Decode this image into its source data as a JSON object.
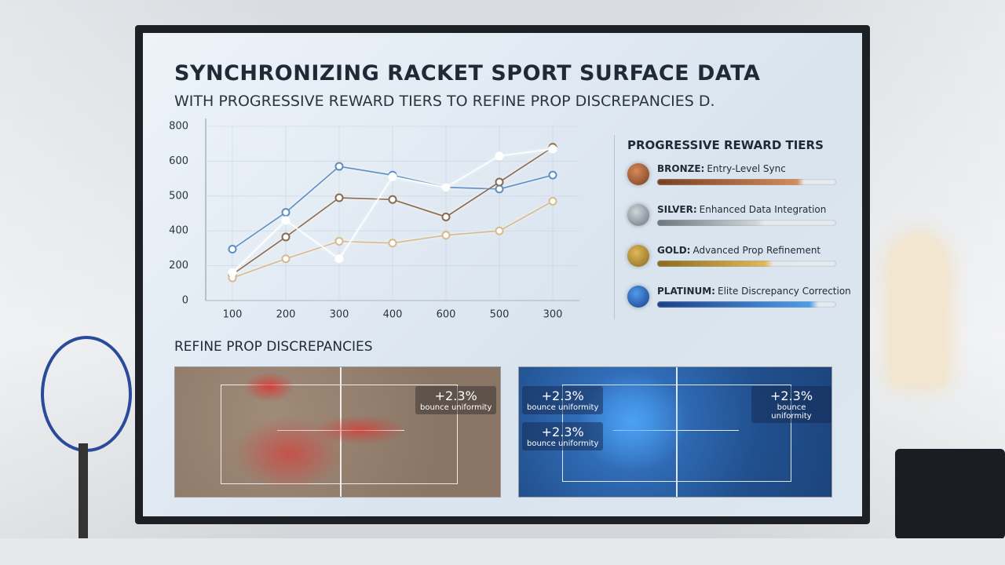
{
  "header": {
    "title": "SYNCHRONIZING RACKET SPORT SURFACE DATA",
    "subtitle": "WITH PROGRESSIVE REWARD TIERS TO REFINE PROP DISCREPANCIES D."
  },
  "chart_data": {
    "type": "line",
    "categories": [
      "100",
      "200",
      "300",
      "400",
      "600",
      "500",
      "300"
    ],
    "ylim": [
      0,
      800
    ],
    "yticks": [
      0,
      200,
      400,
      500,
      600,
      800
    ],
    "grid": true,
    "series": [
      {
        "color": "#5b8ec4",
        "values": [
          295,
          453,
          585,
          560,
          525,
          520,
          560
        ]
      },
      {
        "color": "#8a6a4a",
        "values": [
          150,
          365,
          495,
          490,
          440,
          540,
          680
        ]
      },
      {
        "color": "#d9b98a",
        "values": [
          130,
          240,
          340,
          330,
          375,
          400,
          485
        ]
      },
      {
        "color": "#ffffff",
        "values": [
          160,
          430,
          240,
          555,
          525,
          630,
          670
        ]
      }
    ]
  },
  "tiers": {
    "title": "PROGRESSIVE REWARD TIERS",
    "items": [
      {
        "name": "BRONZE:",
        "desc": "Entry-Level Sync"
      },
      {
        "name": "SILVER:",
        "desc": "Enhanced Data Integration"
      },
      {
        "name": "GOLD:",
        "desc": "Advanced Prop Refinement"
      },
      {
        "name": "PLATINUM:",
        "desc": "Elite Discrepancy Correction"
      }
    ]
  },
  "discrepancies": {
    "title": "REFINE PROP DISCREPANCIES",
    "labels": [
      {
        "value": "+2.3%",
        "text": "bounce uniformity"
      },
      {
        "value": "+2.3%",
        "text": "bounce uniformity"
      },
      {
        "value": "+2.3%",
        "text": "bounce uniformity"
      },
      {
        "value": "+2.3%",
        "text": "bounce uniformity"
      }
    ]
  }
}
